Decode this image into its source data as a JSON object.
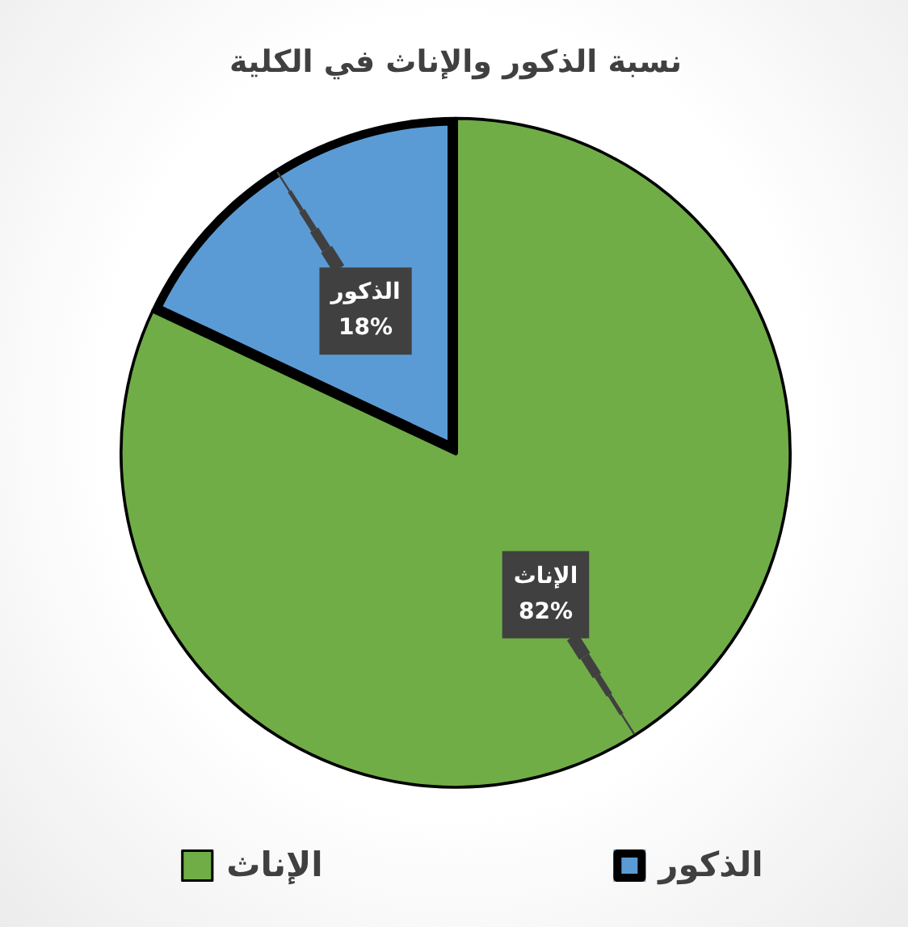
{
  "chart_data": {
    "type": "pie",
    "title": "نسبة الذكور والإناث في الكلية",
    "categories": [
      "الذكور",
      "الإناث"
    ],
    "values": [
      18,
      82
    ],
    "colors": [
      "#5b9bd5",
      "#70ad47"
    ],
    "value_labels": [
      "18%",
      "82%"
    ],
    "legend": "bottom"
  }
}
